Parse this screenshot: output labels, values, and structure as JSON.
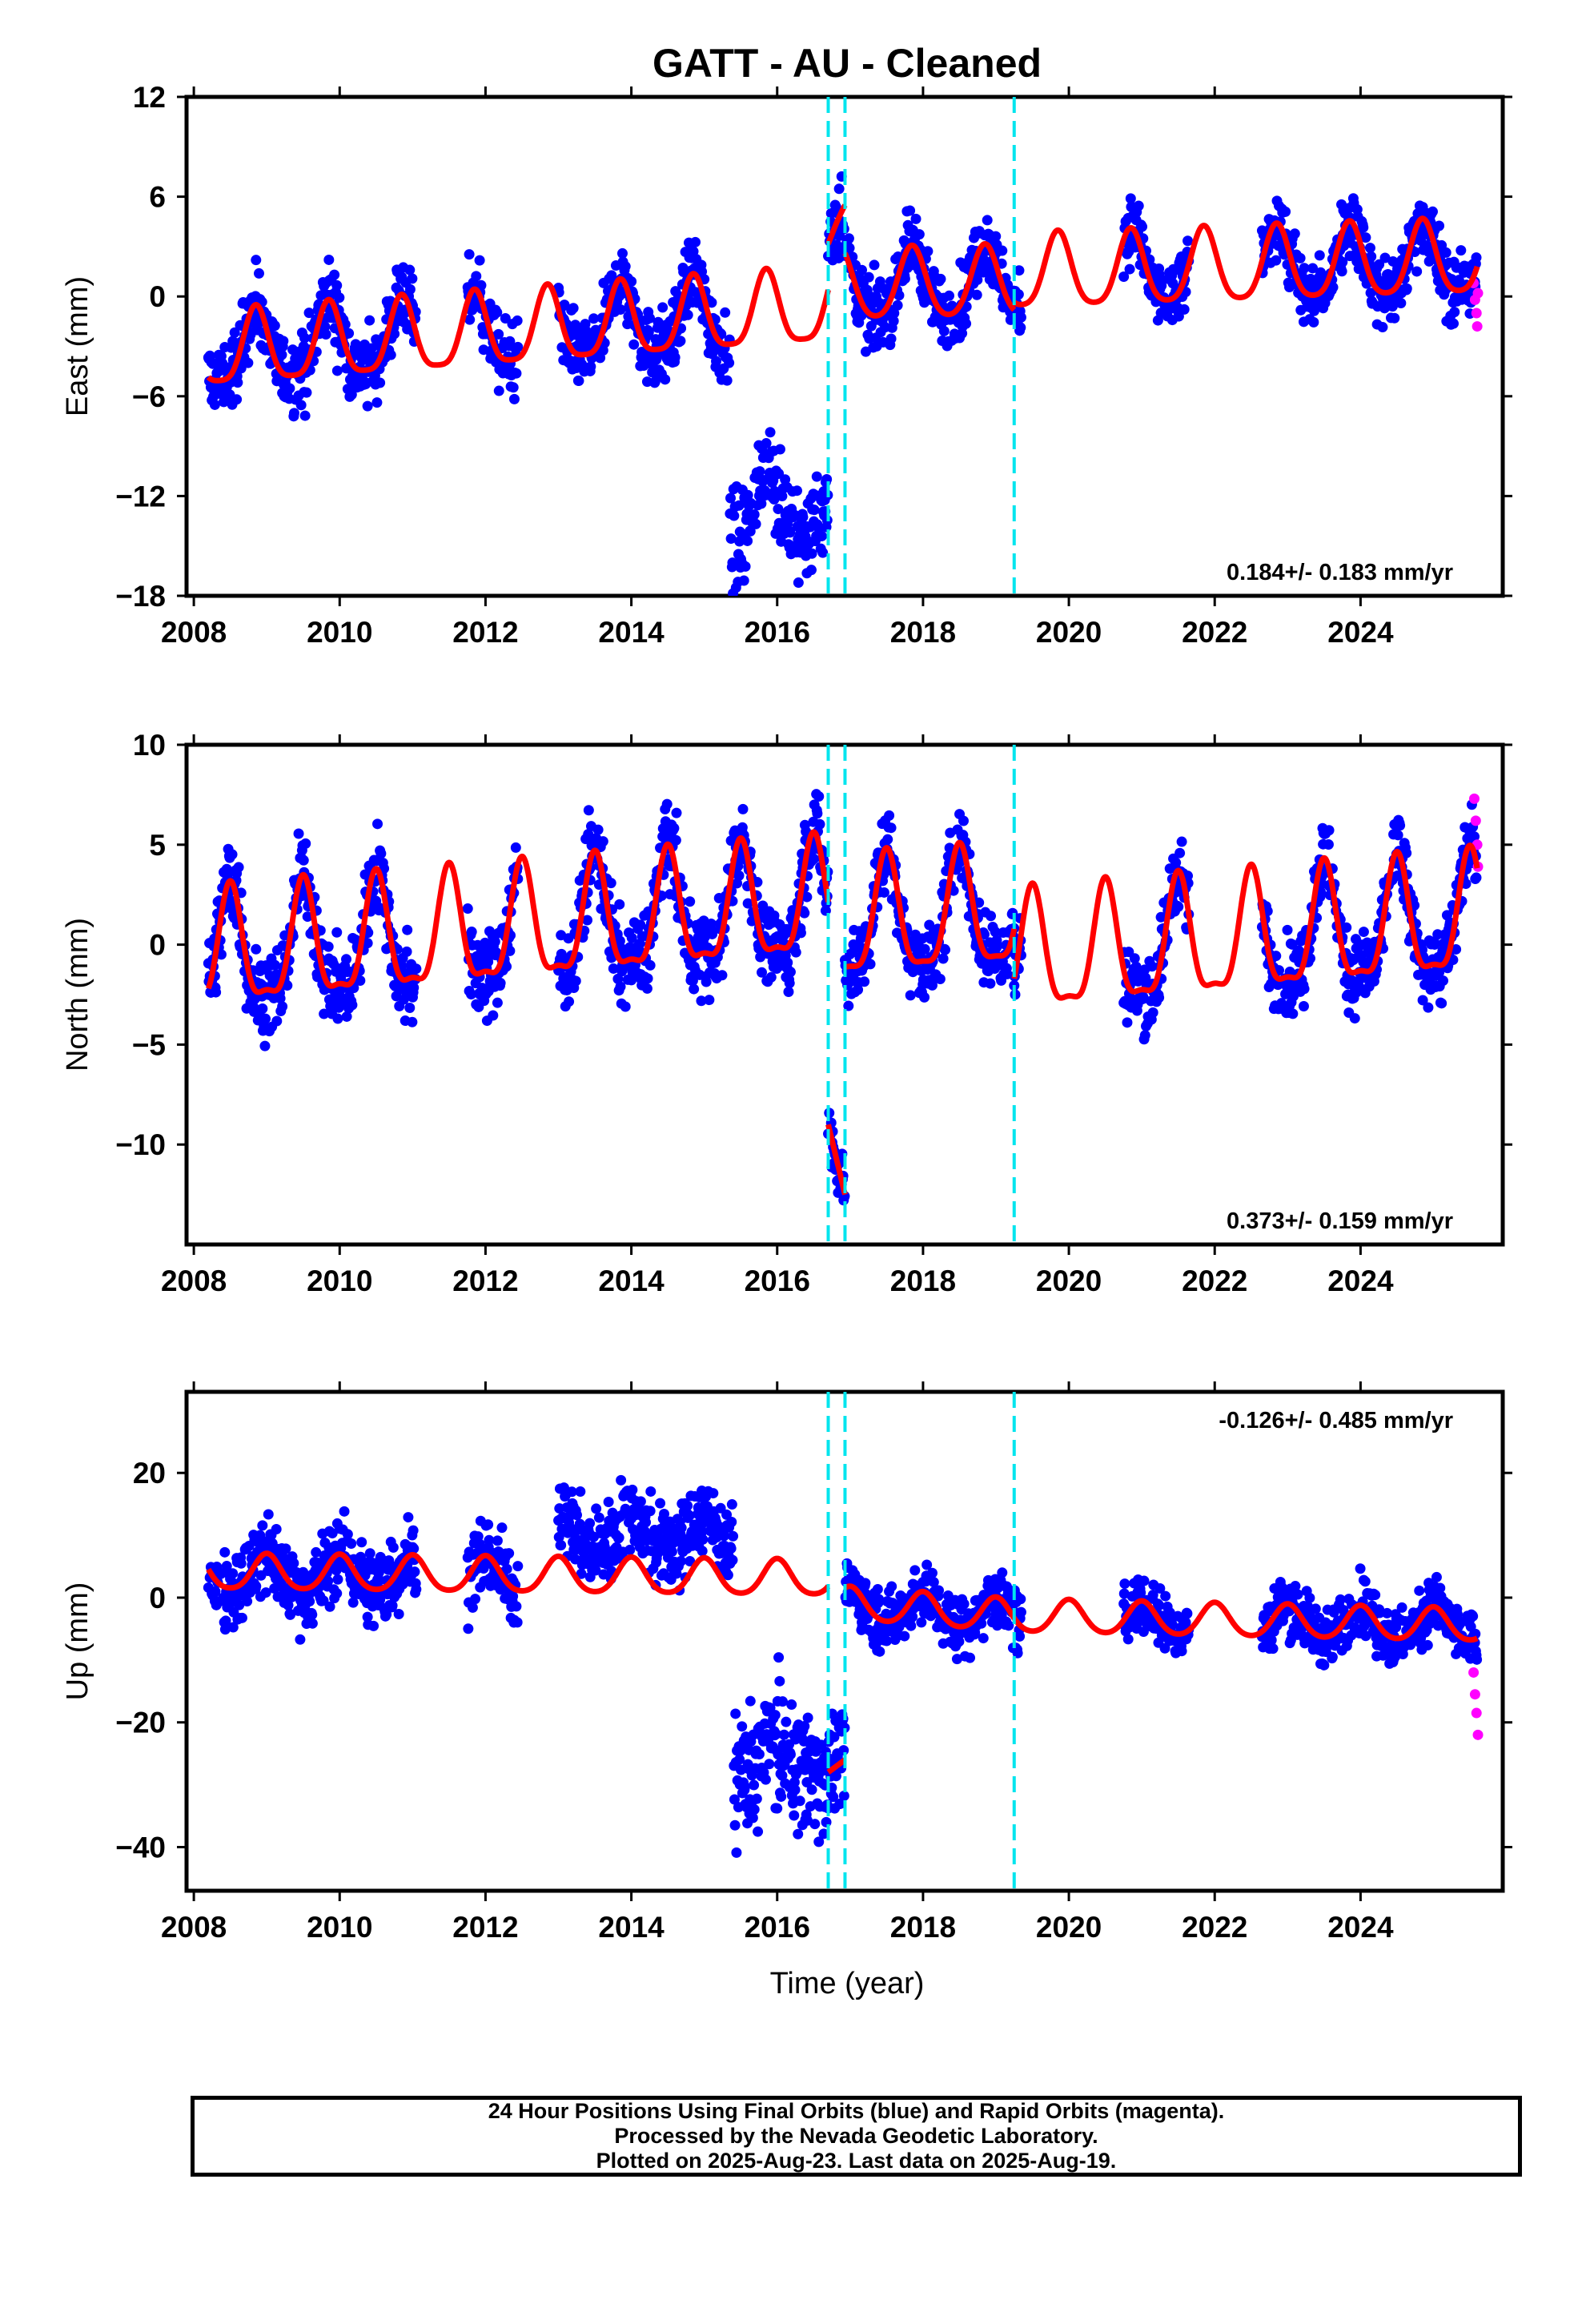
{
  "title": "GATT  - AU - Cleaned",
  "xlabel": "Time (year)",
  "caption": {
    "line1": "24 Hour Positions Using Final Orbits (blue) and Rapid Orbits (magenta).",
    "line2": "Processed by the Nevada Geodetic Laboratory.",
    "line3": "Plotted on 2025-Aug-23. Last data on 2025-Aug-19."
  },
  "colors": {
    "final_orbits": "#0000ff",
    "rapid_orbits": "#ff00ff",
    "model": "#ff0000",
    "offsets": "#00e5ee",
    "frame": "#000000"
  },
  "chart_data": [
    {
      "type": "scatter",
      "component": "east",
      "ylabel": "East (mm)",
      "xlim": [
        2007.9,
        2025.95
      ],
      "ylim": [
        -18,
        12
      ],
      "xticks": [
        2008,
        2010,
        2012,
        2014,
        2016,
        2018,
        2020,
        2022,
        2024
      ],
      "yticks": [
        12,
        6,
        0,
        -6,
        -12,
        -18
      ],
      "ytick_labels": [
        "12",
        "6",
        "0",
        "−6",
        "−12",
        "−18"
      ],
      "rate_label": "0.184+/- 0.183 mm/yr",
      "rate_position": "bottom-right",
      "offsets": [
        2016.7,
        2016.93,
        2019.25
      ],
      "gaps": [
        [
          2011.05,
          2011.75
        ],
        [
          2012.45,
          2013.0
        ],
        [
          2019.35,
          2020.75
        ],
        [
          2021.65,
          2022.65
        ]
      ],
      "segments": [
        {
          "start": 2008.2,
          "end": 2016.7,
          "trend": [
            -3.4,
            -0.75
          ],
          "annual": 2.2,
          "phase": 2008.85,
          "semiannual": 0.5,
          "noise": 1.6,
          "shift": 0,
          "shift_range": [
            2015.35,
            2016.7
          ],
          "shift_amount": -12.0,
          "shift_noise": 2.2
        },
        {
          "start": 2016.7,
          "end": 2016.93,
          "trend": [
            3.0,
            5.0
          ],
          "annual": 0.5,
          "phase": 2016.9,
          "semiannual": 0,
          "noise": 2.0,
          "shift": 0
        },
        {
          "start": 2016.93,
          "end": 2019.25,
          "trend": [
            0.6,
            0.8
          ],
          "annual": 2.1,
          "phase": 2016.85,
          "semiannual": 0.3,
          "noise": 1.5,
          "shift": 0
        },
        {
          "start": 2019.25,
          "end": 2025.6,
          "trend": [
            1.3,
            2.2
          ],
          "annual": 2.2,
          "phase": 2019.85,
          "semiannual": 0.4,
          "noise": 1.5,
          "shift": 0
        }
      ],
      "rapid_points": {
        "x": [
          2025.55,
          2025.57,
          2025.59,
          2025.6,
          2025.61
        ],
        "y": [
          0.8,
          -0.2,
          -1.0,
          -1.8,
          0.2
        ]
      }
    },
    {
      "type": "scatter",
      "component": "north",
      "ylabel": "North (mm)",
      "xlim": [
        2007.9,
        2025.95
      ],
      "ylim": [
        -15,
        10
      ],
      "xticks": [
        2008,
        2010,
        2012,
        2014,
        2016,
        2018,
        2020,
        2022,
        2024
      ],
      "yticks": [
        10,
        5,
        0,
        -5,
        -10
      ],
      "ytick_labels": [
        "10",
        "5",
        "0",
        "−5",
        "−10"
      ],
      "rate_label": "0.373+/- 0.159 mm/yr",
      "rate_position": "bottom-right",
      "offsets": [
        2016.7,
        2016.93,
        2019.25
      ],
      "gaps": [
        [
          2011.05,
          2011.75
        ],
        [
          2012.45,
          2013.0
        ],
        [
          2019.35,
          2020.75
        ],
        [
          2021.65,
          2022.65
        ]
      ],
      "segments": [
        {
          "start": 2008.2,
          "end": 2016.7,
          "trend": [
            -0.6,
            2.0
          ],
          "annual": 2.8,
          "phase": 2008.5,
          "semiannual": 0.9,
          "noise": 1.5,
          "shift": 0
        },
        {
          "start": 2016.7,
          "end": 2016.93,
          "trend": [
            -9.0,
            -12.5
          ],
          "annual": 0,
          "phase": 2016.8,
          "semiannual": 0,
          "noise": 1.2,
          "shift": 0
        },
        {
          "start": 2016.93,
          "end": 2019.25,
          "trend": [
            1.0,
            1.6
          ],
          "annual": 2.9,
          "phase": 2017.5,
          "semiannual": 0.8,
          "noise": 1.4,
          "shift": 0
        },
        {
          "start": 2019.25,
          "end": 2025.6,
          "trend": [
            -0.8,
            1.2
          ],
          "annual": 2.9,
          "phase": 2019.5,
          "semiannual": 0.9,
          "noise": 1.4,
          "shift": 0
        }
      ],
      "rapid_points": {
        "x": [
          2025.56,
          2025.58,
          2025.6,
          2025.61
        ],
        "y": [
          7.3,
          6.2,
          5.0,
          3.9
        ]
      }
    },
    {
      "type": "scatter",
      "component": "up",
      "ylabel": "Up (mm)",
      "xlim": [
        2007.9,
        2025.95
      ],
      "ylim": [
        -47,
        33
      ],
      "xticks": [
        2008,
        2010,
        2012,
        2014,
        2016,
        2018,
        2020,
        2022,
        2024
      ],
      "yticks": [
        20,
        0,
        -20,
        -40
      ],
      "ytick_labels": [
        "20",
        "0",
        "−20",
        "−40"
      ],
      "rate_label": "-0.126+/- 0.485 mm/yr",
      "rate_position": "top-right",
      "offsets": [
        2016.7,
        2016.93,
        2019.25
      ],
      "gaps": [
        [
          2011.05,
          2011.75
        ],
        [
          2012.45,
          2013.0
        ],
        [
          2019.35,
          2020.75
        ],
        [
          2021.65,
          2022.65
        ]
      ],
      "segments": [
        {
          "start": 2008.2,
          "end": 2016.7,
          "trend": [
            4.0,
            3.0
          ],
          "annual": 2.8,
          "phase": 2009.0,
          "semiannual": 0.4,
          "noise": 4.5,
          "shift": 0,
          "shift_range": [
            2015.4,
            2016.7
          ],
          "shift_amount": -29.0,
          "shift_noise": 7.0,
          "bias_range": [
            2013.0,
            2015.4
          ],
          "bias": 7.0
        },
        {
          "start": 2016.7,
          "end": 2016.93,
          "trend": [
            -28.0,
            -26.0
          ],
          "annual": 0,
          "phase": 2016.8,
          "semiannual": 0,
          "noise": 6.0,
          "shift": 0
        },
        {
          "start": 2016.93,
          "end": 2019.25,
          "trend": [
            -1.0,
            -3.0
          ],
          "annual": 2.6,
          "phase": 2017.0,
          "semiannual": 0.3,
          "noise": 3.5,
          "shift": 0
        },
        {
          "start": 2019.25,
          "end": 2025.6,
          "trend": [
            -3.0,
            -4.5
          ],
          "annual": 2.6,
          "phase": 2020.0,
          "semiannual": 0.3,
          "noise": 3.5,
          "shift": 0
        }
      ],
      "rapid_points": {
        "x": [
          2025.55,
          2025.57,
          2025.59,
          2025.61
        ],
        "y": [
          -12.0,
          -15.5,
          -18.5,
          -22.0
        ]
      }
    }
  ]
}
